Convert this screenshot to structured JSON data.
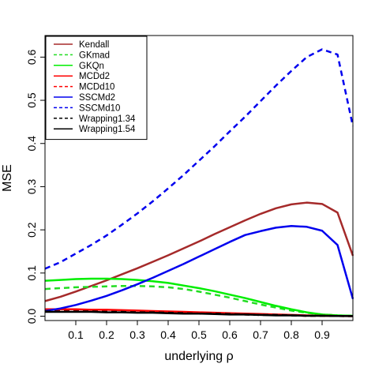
{
  "chart_data": {
    "type": "line",
    "title": "",
    "xlabel": "underlying ρ",
    "ylabel": "MSE",
    "xlim": [
      0.0,
      1.0
    ],
    "ylim": [
      -0.01,
      0.65
    ],
    "x_ticks": [
      0.1,
      0.2,
      0.3,
      0.4,
      0.5,
      0.6,
      0.7,
      0.8,
      0.9
    ],
    "x_tick_labels": [
      "0.1",
      "0.2",
      "0.3",
      "0.4",
      "0.5",
      "0.6",
      "0.7",
      "0.8",
      "0.9"
    ],
    "y_ticks": [
      0.0,
      0.1,
      0.2,
      0.3,
      0.4,
      0.5,
      0.6
    ],
    "y_tick_labels": [
      "0.0",
      "0.1",
      "0.2",
      "0.3",
      "0.4",
      "0.5",
      "0.6"
    ],
    "grid": false,
    "legend_position": "top-left",
    "x": [
      0.0,
      0.05,
      0.1,
      0.15,
      0.2,
      0.25,
      0.3,
      0.35,
      0.4,
      0.45,
      0.5,
      0.55,
      0.6,
      0.65,
      0.7,
      0.75,
      0.8,
      0.85,
      0.9,
      0.95,
      1.0
    ],
    "series": [
      {
        "name": "Kendall",
        "color": "#a52a2a",
        "dash": "solid",
        "values": [
          0.035,
          0.045,
          0.057,
          0.07,
          0.083,
          0.097,
          0.111,
          0.126,
          0.141,
          0.157,
          0.173,
          0.19,
          0.206,
          0.222,
          0.237,
          0.25,
          0.259,
          0.263,
          0.26,
          0.24,
          0.14
        ]
      },
      {
        "name": "GKmad",
        "color": "#22dd22",
        "dash": "dashed",
        "values": [
          0.063,
          0.065,
          0.067,
          0.068,
          0.069,
          0.07,
          0.07,
          0.069,
          0.067,
          0.063,
          0.057,
          0.05,
          0.043,
          0.035,
          0.027,
          0.02,
          0.013,
          0.008,
          0.004,
          0.002,
          0.001
        ]
      },
      {
        "name": "GKQn",
        "color": "#00ee00",
        "dash": "solid",
        "values": [
          0.082,
          0.084,
          0.086,
          0.087,
          0.087,
          0.086,
          0.084,
          0.081,
          0.077,
          0.071,
          0.065,
          0.058,
          0.05,
          0.042,
          0.033,
          0.024,
          0.016,
          0.009,
          0.004,
          0.002,
          0.001
        ]
      },
      {
        "name": "MCDd2",
        "color": "#ff0000",
        "dash": "solid",
        "values": [
          0.016,
          0.016,
          0.016,
          0.015,
          0.015,
          0.014,
          0.013,
          0.012,
          0.011,
          0.01,
          0.009,
          0.008,
          0.007,
          0.006,
          0.005,
          0.004,
          0.003,
          0.002,
          0.001,
          0.0005,
          0.0002
        ]
      },
      {
        "name": "MCDd10",
        "color": "#ff0000",
        "dash": "dashed",
        "values": [
          0.014,
          0.014,
          0.014,
          0.013,
          0.013,
          0.012,
          0.011,
          0.01,
          0.009,
          0.008,
          0.007,
          0.006,
          0.005,
          0.004,
          0.003,
          0.003,
          0.002,
          0.001,
          0.001,
          0.0005,
          0.0002
        ]
      },
      {
        "name": "SSCMd2",
        "color": "#0000ee",
        "dash": "solid",
        "values": [
          0.012,
          0.018,
          0.026,
          0.036,
          0.047,
          0.06,
          0.074,
          0.089,
          0.105,
          0.121,
          0.138,
          0.155,
          0.172,
          0.188,
          0.197,
          0.205,
          0.209,
          0.207,
          0.198,
          0.165,
          0.04
        ]
      },
      {
        "name": "SSCMd10",
        "color": "#0000ee",
        "dash": "dashed",
        "values": [
          0.11,
          0.125,
          0.145,
          0.165,
          0.187,
          0.212,
          0.238,
          0.266,
          0.296,
          0.327,
          0.36,
          0.393,
          0.428,
          0.462,
          0.498,
          0.534,
          0.568,
          0.6,
          0.618,
          0.606,
          0.44
        ]
      },
      {
        "name": "Wrapping1.34",
        "color": "#000000",
        "dash": "dashed",
        "values": [
          0.011,
          0.011,
          0.011,
          0.011,
          0.01,
          0.01,
          0.009,
          0.009,
          0.008,
          0.007,
          0.006,
          0.006,
          0.005,
          0.004,
          0.003,
          0.003,
          0.002,
          0.001,
          0.001,
          0.0005,
          0.0002
        ]
      },
      {
        "name": "Wrapping1.54",
        "color": "#000000",
        "dash": "solid",
        "values": [
          0.01,
          0.01,
          0.01,
          0.01,
          0.009,
          0.009,
          0.008,
          0.008,
          0.007,
          0.006,
          0.006,
          0.005,
          0.004,
          0.004,
          0.003,
          0.002,
          0.002,
          0.001,
          0.001,
          0.0005,
          0.0002
        ]
      }
    ]
  }
}
